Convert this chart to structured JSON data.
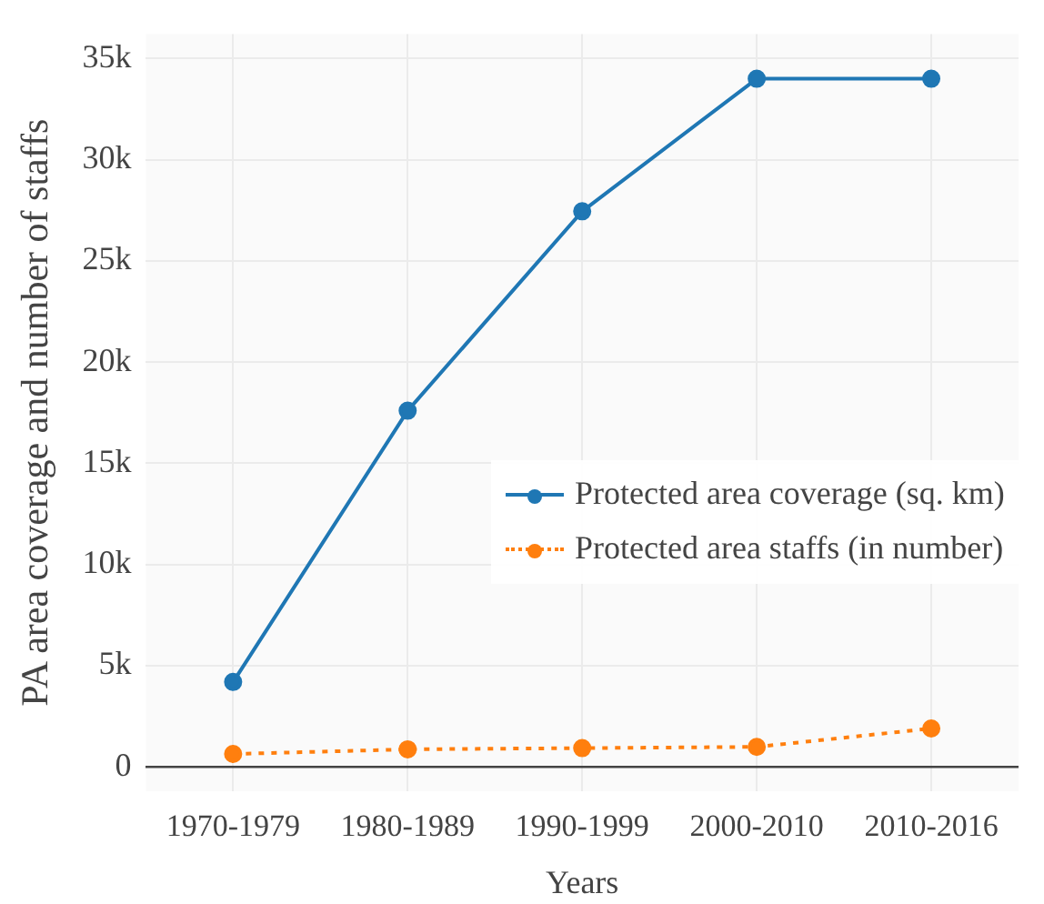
{
  "chart_data": {
    "type": "line",
    "xlabel": "Years",
    "ylabel": "PA area coverage and number of staffs",
    "categories": [
      "1970-1979",
      "1980-1989",
      "1990-1999",
      "2000-2010",
      "2010-2016"
    ],
    "series": [
      {
        "name": "Protected area coverage (sq. km)",
        "color": "#1f77b4",
        "line_style": "solid",
        "values": [
          4200,
          17600,
          27450,
          34000,
          34000
        ]
      },
      {
        "name": "Protected area staffs (in number)",
        "color": "#ff7f0e",
        "line_style": "dotted",
        "values": [
          640,
          870,
          930,
          990,
          1900
        ]
      }
    ],
    "ylim": [
      -1200,
      36200
    ],
    "yticks": [
      {
        "value": 0,
        "label": "0"
      },
      {
        "value": 5000,
        "label": "5k"
      },
      {
        "value": 10000,
        "label": "10k"
      },
      {
        "value": 15000,
        "label": "15k"
      },
      {
        "value": 20000,
        "label": "20k"
      },
      {
        "value": 25000,
        "label": "25k"
      },
      {
        "value": 30000,
        "label": "30k"
      },
      {
        "value": 35000,
        "label": "35k"
      }
    ],
    "grid": true,
    "legend": "right",
    "marker": "circle"
  }
}
